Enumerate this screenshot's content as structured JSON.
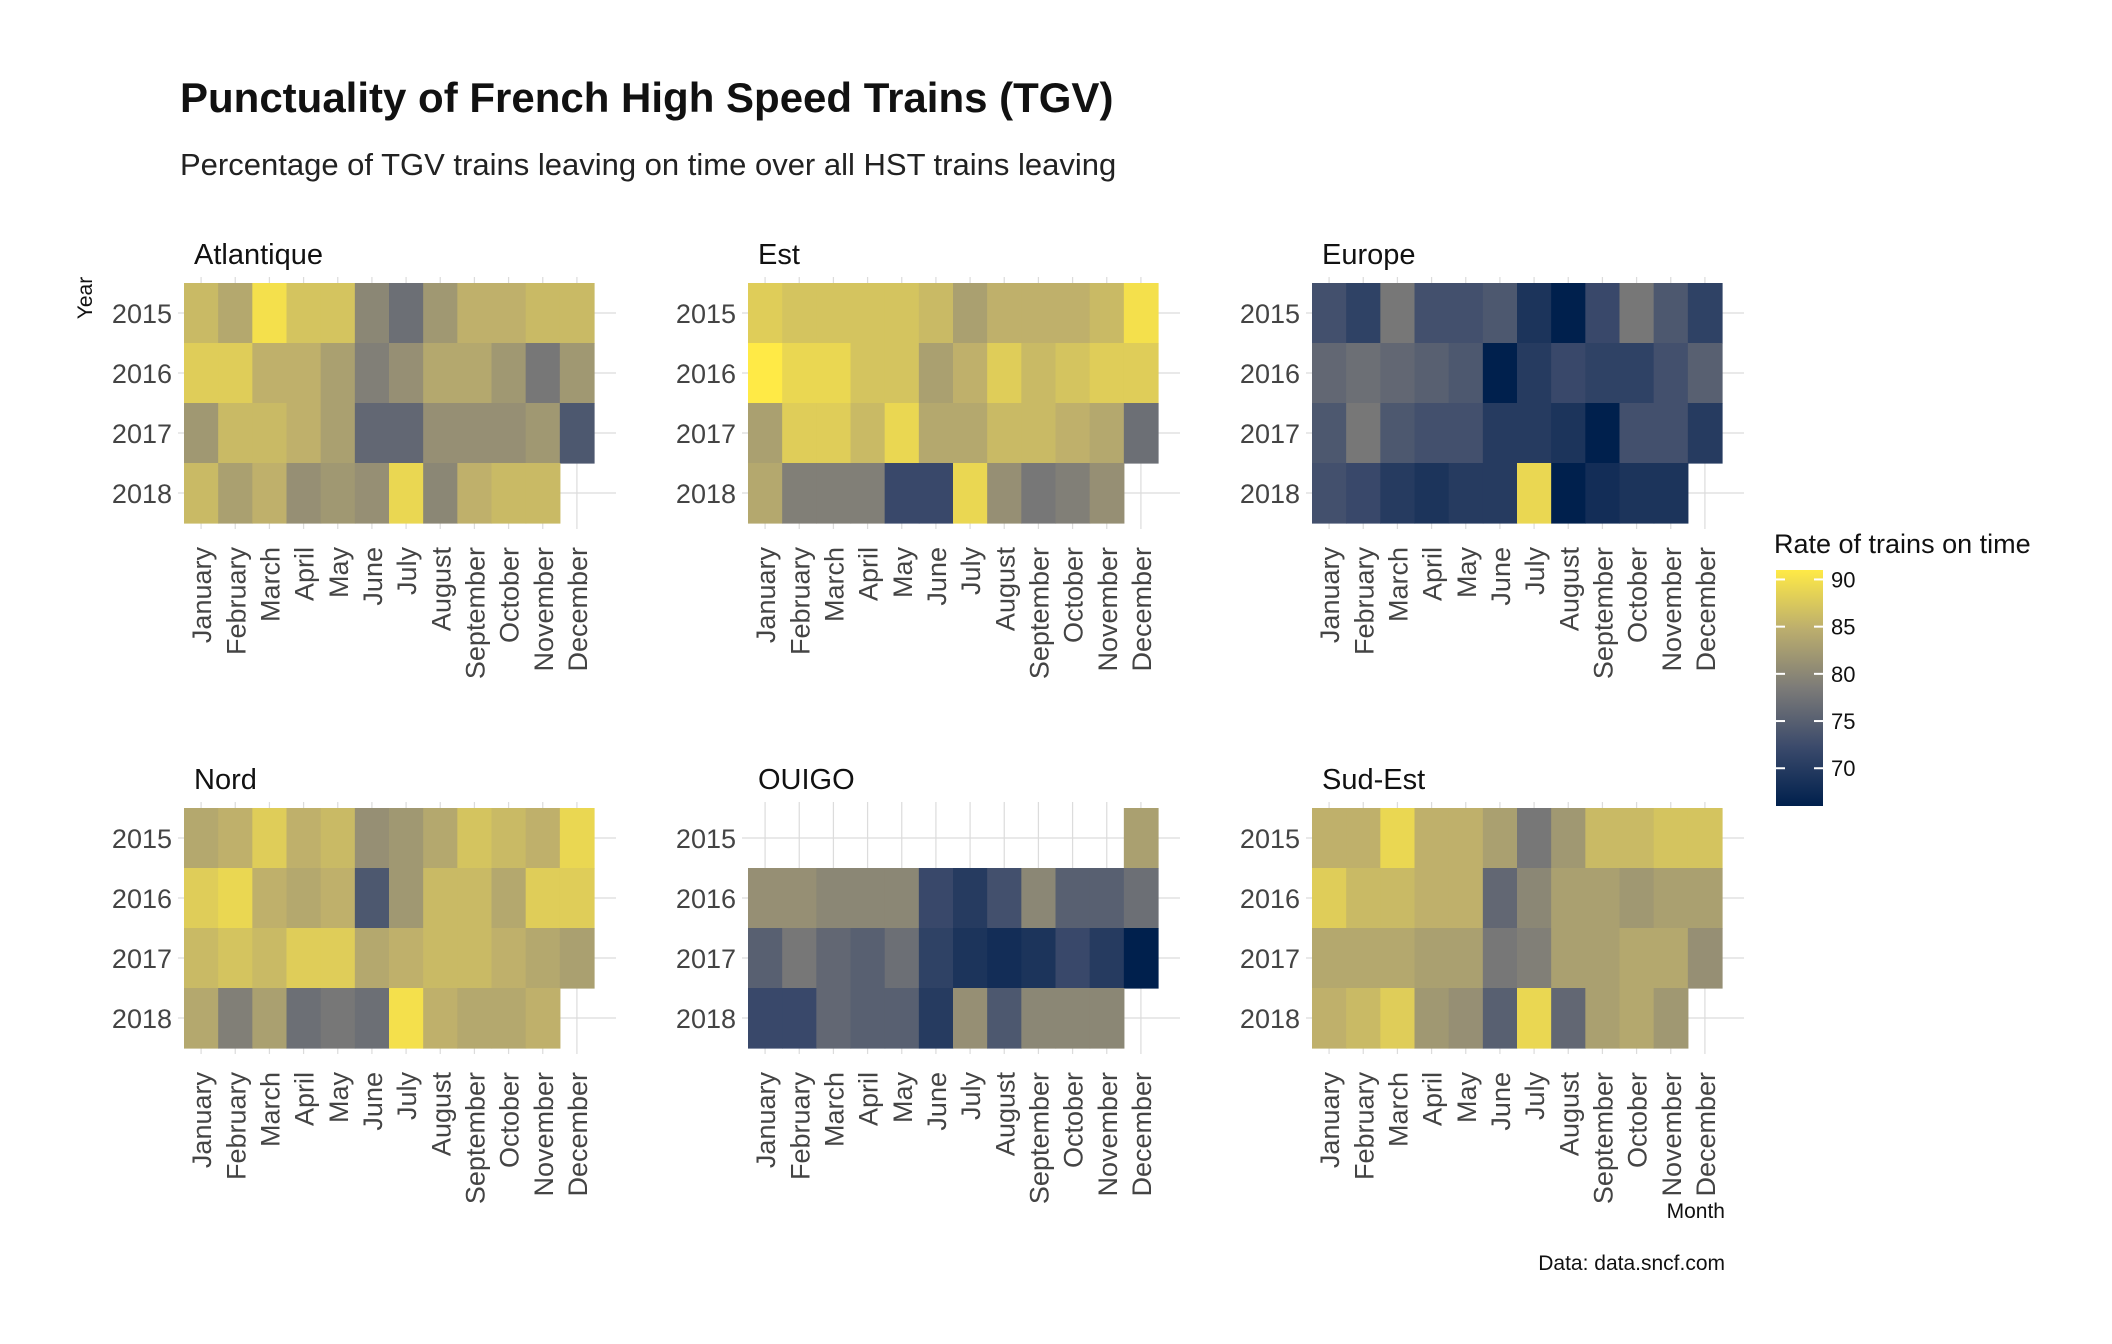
{
  "chart_data": {
    "type": "heatmap",
    "title": "Punctuality of French High Speed Trains (TGV)",
    "subtitle": "Percentage of TGV trains leaving on time over all HST trains leaving",
    "caption": "Data: data.sncf.com",
    "xlabel": "Month",
    "ylabel": "Year",
    "months": [
      "January",
      "February",
      "March",
      "April",
      "May",
      "June",
      "July",
      "August",
      "September",
      "October",
      "November",
      "December"
    ],
    "years": [
      "2015",
      "2016",
      "2017",
      "2018"
    ],
    "legend": {
      "title": "Rate of trains on time",
      "ticks": [
        90,
        85,
        80,
        75,
        70
      ],
      "range": [
        66,
        91
      ],
      "placement": "right",
      "colors": [
        "#00204d",
        "#3b4a6b",
        "#7c7b78",
        "#bcae6d",
        "#ffea46"
      ]
    },
    "grid": true,
    "panels": [
      {
        "name": "Atlantique",
        "values": [
          [
            86,
            84,
            90,
            87,
            87,
            80,
            77,
            82,
            85,
            85,
            86,
            86
          ],
          [
            88,
            88,
            85,
            85,
            83,
            79,
            81,
            84,
            84,
            82,
            78,
            82
          ],
          [
            82,
            86,
            86,
            85,
            83,
            76,
            76,
            81,
            81,
            81,
            82,
            74
          ],
          [
            86,
            83,
            85,
            81,
            82,
            81,
            89,
            80,
            85,
            86,
            86,
            null
          ]
        ]
      },
      {
        "name": "Est",
        "values": [
          [
            88,
            87,
            87,
            87,
            87,
            86,
            83,
            85,
            85,
            85,
            86,
            90
          ],
          [
            91,
            89,
            89,
            87,
            87,
            83,
            85,
            88,
            86,
            87,
            88,
            88
          ],
          [
            83,
            88,
            88,
            86,
            89,
            84,
            84,
            86,
            86,
            85,
            84,
            77
          ],
          [
            84,
            79,
            79,
            79,
            72,
            72,
            89,
            81,
            78,
            79,
            81,
            null
          ]
        ]
      },
      {
        "name": "Europe",
        "values": [
          [
            73,
            71,
            78,
            73,
            73,
            74,
            69,
            66,
            72,
            78,
            74,
            71
          ],
          [
            76,
            77,
            76,
            75,
            74,
            66,
            70,
            72,
            71,
            71,
            73,
            75
          ],
          [
            74,
            78,
            74,
            73,
            73,
            70,
            70,
            69,
            66,
            73,
            73,
            70
          ],
          [
            73,
            72,
            70,
            69,
            70,
            70,
            89,
            66,
            68,
            69,
            69,
            null
          ]
        ]
      },
      {
        "name": "Nord",
        "values": [
          [
            84,
            85,
            88,
            85,
            86,
            81,
            82,
            84,
            87,
            86,
            85,
            89
          ],
          [
            88,
            89,
            85,
            84,
            85,
            74,
            82,
            86,
            86,
            84,
            88,
            88
          ],
          [
            86,
            87,
            86,
            88,
            88,
            84,
            85,
            86,
            86,
            85,
            84,
            83
          ],
          [
            84,
            79,
            83,
            77,
            78,
            77,
            90,
            85,
            84,
            84,
            85,
            null
          ]
        ]
      },
      {
        "name": "OUIGO",
        "values": [
          [
            null,
            null,
            null,
            null,
            null,
            null,
            null,
            null,
            null,
            null,
            null,
            83
          ],
          [
            81,
            81,
            80,
            80,
            80,
            72,
            70,
            73,
            80,
            75,
            75,
            77
          ],
          [
            75,
            78,
            76,
            75,
            77,
            71,
            69,
            68,
            69,
            72,
            70,
            66
          ],
          [
            72,
            72,
            76,
            75,
            75,
            70,
            81,
            74,
            80,
            80,
            80,
            null
          ]
        ]
      },
      {
        "name": "Sud-Est",
        "values": [
          [
            85,
            85,
            89,
            85,
            85,
            83,
            78,
            82,
            86,
            86,
            87,
            87
          ],
          [
            88,
            86,
            86,
            85,
            85,
            76,
            80,
            83,
            83,
            82,
            83,
            83
          ],
          [
            84,
            84,
            84,
            83,
            83,
            78,
            79,
            83,
            83,
            84,
            84,
            81
          ],
          [
            85,
            86,
            88,
            82,
            81,
            75,
            89,
            76,
            83,
            84,
            82,
            null
          ]
        ]
      }
    ]
  }
}
